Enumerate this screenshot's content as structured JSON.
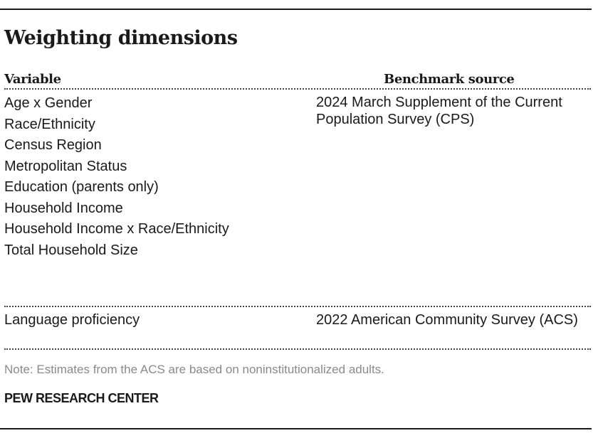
{
  "title": "Weighting dimensions",
  "table": {
    "columns": {
      "variable": "Variable",
      "benchmark": "Benchmark source"
    },
    "groups": [
      {
        "variables": [
          "Age x Gender",
          "Race/Ethnicity",
          "Census Region",
          "Metropolitan Status",
          "Education (parents only)",
          "Household Income",
          "Household Income x Race/Ethnicity",
          "Total Household Size"
        ],
        "source": "2024 March Supplement of the Current Population Survey (CPS)"
      },
      {
        "variables": [
          "Language proficiency"
        ],
        "source": "2022 American Community Survey (ACS)"
      }
    ]
  },
  "note": "Note: Estimates from the ACS are based on noninstitutionalized adults.",
  "organization": "PEW RESEARCH CENTER"
}
